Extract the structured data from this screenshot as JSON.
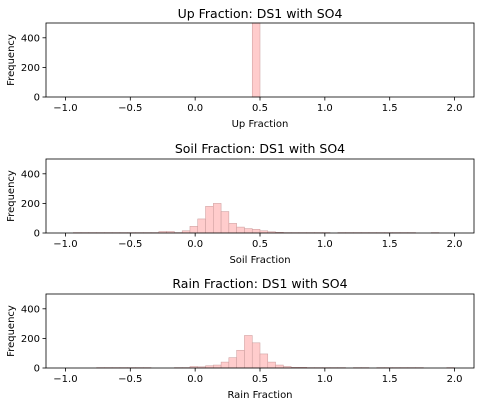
{
  "chart_data": [
    {
      "type": "bar",
      "title": "Up Fraction: DS1 with SO4",
      "xlabel": "Up Fraction",
      "ylabel": "Frequency",
      "xlim": [
        -1.15,
        2.15
      ],
      "ylim": [
        0,
        500
      ],
      "xticks": [
        "−1.0",
        "−0.5",
        "0.0",
        "0.5",
        "1.0",
        "1.5",
        "2.0"
      ],
      "xtick_values": [
        -1.0,
        -0.5,
        0.0,
        0.5,
        1.0,
        1.5,
        2.0
      ],
      "yticks": [
        "0",
        "200",
        "400"
      ],
      "ytick_values": [
        0,
        200,
        400
      ],
      "bar_color": "#ffcccc",
      "bins": [
        {
          "x0": 0.44,
          "x1": 0.5,
          "count": 500
        }
      ]
    },
    {
      "type": "bar",
      "title": "Soil Fraction: DS1 with SO4",
      "xlabel": "Soil Fraction",
      "ylabel": "Frequency",
      "xlim": [
        -1.15,
        2.15
      ],
      "ylim": [
        0,
        500
      ],
      "xticks": [
        "−1.0",
        "−0.5",
        "0.0",
        "0.5",
        "1.0",
        "1.5",
        "2.0"
      ],
      "xtick_values": [
        -1.0,
        -0.5,
        0.0,
        0.5,
        1.0,
        1.5,
        2.0
      ],
      "yticks": [
        "0",
        "200",
        "400"
      ],
      "ytick_values": [
        0,
        200,
        400
      ],
      "bar_color": "#ffcccc",
      "bins": [
        {
          "x0": -0.94,
          "x1": -0.88,
          "count": 3
        },
        {
          "x0": -0.88,
          "x1": -0.82,
          "count": 3
        },
        {
          "x0": -0.82,
          "x1": -0.76,
          "count": 3
        },
        {
          "x0": -0.76,
          "x1": -0.7,
          "count": 3
        },
        {
          "x0": -0.7,
          "x1": -0.64,
          "count": 3
        },
        {
          "x0": -0.64,
          "x1": -0.58,
          "count": 3
        },
        {
          "x0": -0.58,
          "x1": -0.52,
          "count": 3
        },
        {
          "x0": -0.52,
          "x1": -0.46,
          "count": 3
        },
        {
          "x0": -0.46,
          "x1": -0.4,
          "count": 3
        },
        {
          "x0": -0.4,
          "x1": -0.34,
          "count": 3
        },
        {
          "x0": -0.34,
          "x1": -0.28,
          "count": 3
        },
        {
          "x0": -0.28,
          "x1": -0.22,
          "count": 10
        },
        {
          "x0": -0.22,
          "x1": -0.16,
          "count": 10
        },
        {
          "x0": -0.16,
          "x1": -0.1,
          "count": 3
        },
        {
          "x0": -0.1,
          "x1": -0.04,
          "count": 15
        },
        {
          "x0": -0.04,
          "x1": 0.02,
          "count": 45
        },
        {
          "x0": 0.02,
          "x1": 0.08,
          "count": 95
        },
        {
          "x0": 0.08,
          "x1": 0.14,
          "count": 180
        },
        {
          "x0": 0.14,
          "x1": 0.2,
          "count": 200
        },
        {
          "x0": 0.2,
          "x1": 0.26,
          "count": 145
        },
        {
          "x0": 0.26,
          "x1": 0.32,
          "count": 65
        },
        {
          "x0": 0.32,
          "x1": 0.38,
          "count": 40
        },
        {
          "x0": 0.38,
          "x1": 0.44,
          "count": 30
        },
        {
          "x0": 0.44,
          "x1": 0.5,
          "count": 25
        },
        {
          "x0": 0.5,
          "x1": 0.56,
          "count": 15
        },
        {
          "x0": 0.56,
          "x1": 0.62,
          "count": 8
        },
        {
          "x0": 0.62,
          "x1": 0.68,
          "count": 5
        },
        {
          "x0": 0.68,
          "x1": 0.74,
          "count": 3
        },
        {
          "x0": 0.74,
          "x1": 0.8,
          "count": 3
        },
        {
          "x0": 0.8,
          "x1": 0.86,
          "count": 3
        },
        {
          "x0": 0.86,
          "x1": 0.92,
          "count": 3
        },
        {
          "x0": 0.92,
          "x1": 0.98,
          "count": 3
        },
        {
          "x0": 0.98,
          "x1": 1.04,
          "count": 3
        },
        {
          "x0": 1.1,
          "x1": 1.16,
          "count": 3
        },
        {
          "x0": 1.16,
          "x1": 1.22,
          "count": 3
        },
        {
          "x0": 1.22,
          "x1": 1.28,
          "count": 3
        },
        {
          "x0": 1.28,
          "x1": 1.34,
          "count": 3
        },
        {
          "x0": 1.34,
          "x1": 1.4,
          "count": 3
        },
        {
          "x0": 1.4,
          "x1": 1.46,
          "count": 3
        },
        {
          "x0": 1.46,
          "x1": 1.52,
          "count": 3
        },
        {
          "x0": 1.52,
          "x1": 1.58,
          "count": 3
        },
        {
          "x0": 1.58,
          "x1": 1.64,
          "count": 3
        },
        {
          "x0": 1.64,
          "x1": 1.7,
          "count": 3
        },
        {
          "x0": 1.82,
          "x1": 1.88,
          "count": 3
        }
      ]
    },
    {
      "type": "bar",
      "title": "Rain Fraction: DS1 with SO4",
      "xlabel": "Rain Fraction",
      "ylabel": "Frequency",
      "xlim": [
        -1.15,
        2.15
      ],
      "ylim": [
        0,
        500
      ],
      "xticks": [
        "−1.0",
        "−0.5",
        "0.0",
        "0.5",
        "1.0",
        "1.5",
        "2.0"
      ],
      "xtick_values": [
        -1.0,
        -0.5,
        0.0,
        0.5,
        1.0,
        1.5,
        2.0
      ],
      "yticks": [
        "0",
        "200",
        "400"
      ],
      "ytick_values": [
        0,
        200,
        400
      ],
      "bar_color": "#ffcccc",
      "bins": [
        {
          "x0": -0.76,
          "x1": -0.7,
          "count": 3
        },
        {
          "x0": -0.7,
          "x1": -0.64,
          "count": 3
        },
        {
          "x0": -0.64,
          "x1": -0.58,
          "count": 3
        },
        {
          "x0": -0.58,
          "x1": -0.52,
          "count": 3
        },
        {
          "x0": -0.52,
          "x1": -0.46,
          "count": 3
        },
        {
          "x0": -0.46,
          "x1": -0.4,
          "count": 3
        },
        {
          "x0": -0.4,
          "x1": -0.34,
          "count": 3
        },
        {
          "x0": -0.16,
          "x1": -0.1,
          "count": 3
        },
        {
          "x0": -0.1,
          "x1": -0.04,
          "count": 3
        },
        {
          "x0": -0.04,
          "x1": 0.02,
          "count": 10
        },
        {
          "x0": 0.02,
          "x1": 0.08,
          "count": 8
        },
        {
          "x0": 0.08,
          "x1": 0.14,
          "count": 15
        },
        {
          "x0": 0.14,
          "x1": 0.2,
          "count": 20
        },
        {
          "x0": 0.2,
          "x1": 0.26,
          "count": 40
        },
        {
          "x0": 0.26,
          "x1": 0.32,
          "count": 70
        },
        {
          "x0": 0.32,
          "x1": 0.38,
          "count": 120
        },
        {
          "x0": 0.38,
          "x1": 0.44,
          "count": 220
        },
        {
          "x0": 0.44,
          "x1": 0.5,
          "count": 170
        },
        {
          "x0": 0.5,
          "x1": 0.56,
          "count": 95
        },
        {
          "x0": 0.56,
          "x1": 0.62,
          "count": 40
        },
        {
          "x0": 0.62,
          "x1": 0.68,
          "count": 20
        },
        {
          "x0": 0.68,
          "x1": 0.74,
          "count": 10
        },
        {
          "x0": 0.74,
          "x1": 0.8,
          "count": 5
        },
        {
          "x0": 0.8,
          "x1": 0.86,
          "count": 5
        },
        {
          "x0": 0.86,
          "x1": 0.92,
          "count": 3
        },
        {
          "x0": 0.92,
          "x1": 0.98,
          "count": 3
        },
        {
          "x0": 0.98,
          "x1": 1.04,
          "count": 3
        },
        {
          "x0": 1.04,
          "x1": 1.1,
          "count": 3
        },
        {
          "x0": 1.1,
          "x1": 1.16,
          "count": 3
        },
        {
          "x0": 1.22,
          "x1": 1.28,
          "count": 3
        },
        {
          "x0": 1.28,
          "x1": 1.34,
          "count": 3
        },
        {
          "x0": 1.4,
          "x1": 1.46,
          "count": 3
        },
        {
          "x0": 1.46,
          "x1": 1.52,
          "count": 3
        },
        {
          "x0": 1.52,
          "x1": 1.58,
          "count": 3
        },
        {
          "x0": 1.58,
          "x1": 1.64,
          "count": 3
        },
        {
          "x0": 1.64,
          "x1": 1.7,
          "count": 3
        },
        {
          "x0": 1.7,
          "x1": 1.76,
          "count": 3
        },
        {
          "x0": 1.94,
          "x1": 2.0,
          "count": 3
        }
      ]
    }
  ]
}
